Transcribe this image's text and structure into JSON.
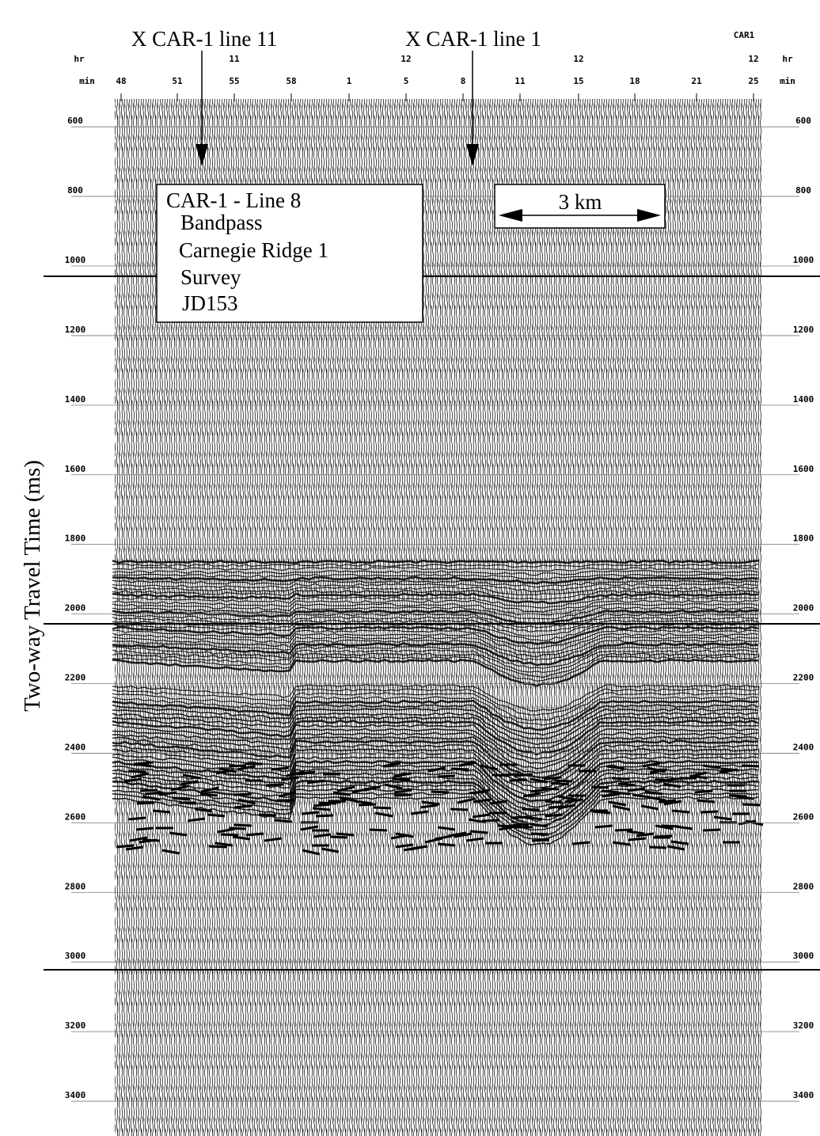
{
  "chart_data": {
    "type": "seismic",
    "corner_label": "CAR1",
    "y_label": "Two-way Travel Time (ms)",
    "ylim": [
      520,
      3500
    ],
    "yticks": [
      600,
      800,
      1000,
      1200,
      1400,
      1600,
      1800,
      2000,
      2200,
      2400,
      2600,
      2800,
      3000,
      3200,
      3400
    ],
    "top_axis": {
      "hr_labels": [
        "hr",
        "11",
        "12",
        "12",
        "12",
        "hr"
      ],
      "min_labels": [
        "min",
        "48",
        "51",
        "55",
        "58",
        "1",
        "5",
        "8",
        "11",
        "15",
        "18",
        "21",
        "25",
        "min"
      ]
    },
    "markers": [
      "X CAR-1 line 11",
      "X CAR-1 line 1"
    ],
    "info_box": [
      "CAR-1 - Line 8",
      "Bandpass",
      "Carnegie Ridge 1",
      "Survey",
      "JD153"
    ],
    "scale_label": "3 km"
  }
}
